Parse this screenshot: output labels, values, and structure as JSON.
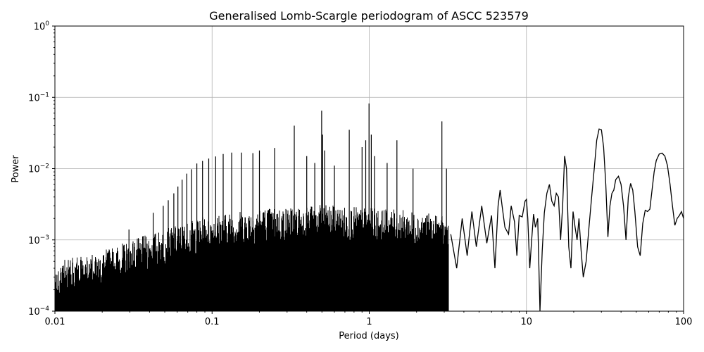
{
  "chart_data": {
    "type": "line",
    "title": "Generalised Lomb-Scargle periodogram of ASCC 523579",
    "xlabel": "Period (days)",
    "ylabel": "Power",
    "xscale": "log",
    "yscale": "log",
    "xlim": [
      0.01,
      100
    ],
    "ylim": [
      0.0001,
      1
    ],
    "grid": true,
    "legend": null,
    "x_ticks": [
      "0.01",
      "0.1",
      "1",
      "10",
      "100"
    ],
    "y_ticks": [
      {
        "base": "10",
        "exp": "−4",
        "value": 0.0001
      },
      {
        "base": "10",
        "exp": "−3",
        "value": 0.001
      },
      {
        "base": "10",
        "exp": "−2",
        "value": 0.01
      },
      {
        "base": "10",
        "exp": "−1",
        "value": 0.1
      },
      {
        "base": "10",
        "exp": "0",
        "value": 1
      }
    ],
    "series_color": "#000000",
    "noise_floor_envelope": {
      "description": "dense aliasing forest below ~3 d; approximate upper envelope of the noise",
      "periods": [
        0.01,
        0.02,
        0.03,
        0.05,
        0.08,
        0.1,
        0.2,
        0.5,
        1.0,
        2.0,
        3.0
      ],
      "power": [
        0.00035,
        0.0005,
        0.0007,
        0.001,
        0.0014,
        0.0016,
        0.002,
        0.0022,
        0.002,
        0.0018,
        0.0015
      ]
    },
    "alias_peaks": [
      {
        "period": 0.0296,
        "power": 0.0014
      },
      {
        "period": 0.0422,
        "power": 0.0024
      },
      {
        "period": 0.0489,
        "power": 0.003
      },
      {
        "period": 0.0526,
        "power": 0.0036
      },
      {
        "period": 0.0571,
        "power": 0.0045
      },
      {
        "period": 0.0606,
        "power": 0.0056
      },
      {
        "period": 0.0645,
        "power": 0.007
      },
      {
        "period": 0.069,
        "power": 0.0085
      },
      {
        "period": 0.074,
        "power": 0.0098
      },
      {
        "period": 0.08,
        "power": 0.0118
      },
      {
        "period": 0.087,
        "power": 0.0128
      },
      {
        "period": 0.0952,
        "power": 0.0138
      },
      {
        "period": 0.1053,
        "power": 0.0148
      },
      {
        "period": 0.1176,
        "power": 0.016
      },
      {
        "period": 0.1333,
        "power": 0.0168
      },
      {
        "period": 0.1538,
        "power": 0.0168
      },
      {
        "period": 0.1818,
        "power": 0.0165
      },
      {
        "period": 0.2,
        "power": 0.018
      },
      {
        "period": 0.25,
        "power": 0.0195
      },
      {
        "period": 0.3333,
        "power": 0.04
      },
      {
        "period": 0.4,
        "power": 0.015
      },
      {
        "period": 0.45,
        "power": 0.012
      },
      {
        "period": 0.498,
        "power": 0.065
      },
      {
        "period": 0.504,
        "power": 0.03
      },
      {
        "period": 0.52,
        "power": 0.018
      },
      {
        "period": 0.6,
        "power": 0.011
      },
      {
        "period": 0.746,
        "power": 0.035
      },
      {
        "period": 0.9,
        "power": 0.02
      },
      {
        "period": 0.95,
        "power": 0.025
      },
      {
        "period": 0.9973,
        "power": 0.082
      },
      {
        "period": 1.03,
        "power": 0.03
      },
      {
        "period": 1.08,
        "power": 0.015
      },
      {
        "period": 1.3,
        "power": 0.012
      },
      {
        "period": 1.5,
        "power": 0.025
      },
      {
        "period": 1.9,
        "power": 0.01
      },
      {
        "period": 2.9,
        "power": 0.046
      },
      {
        "period": 3.1,
        "power": 0.01
      }
    ],
    "long_period_curve": {
      "periods": [
        3.3,
        3.6,
        3.9,
        4.2,
        4.5,
        4.8,
        5.2,
        5.6,
        6.0,
        6.3,
        6.6,
        6.8,
        7.0,
        7.3,
        7.7,
        8.0,
        8.4,
        8.7,
        9.0,
        9.4,
        9.8,
        10.0,
        10.2,
        10.5,
        10.8,
        11.1,
        11.4,
        11.8,
        12.2,
        12.6,
        13.0,
        13.5,
        14.0,
        14.5,
        15.0,
        15.5,
        16.0,
        16.5,
        17.0,
        17.5,
        18.0,
        18.6,
        19.2,
        19.8,
        20.4,
        21.0,
        21.6,
        22.3,
        23.0,
        24.0,
        25.0,
        26.0,
        27.0,
        28.0,
        29.0,
        30.0,
        31.0,
        32.0,
        33.0,
        34.0,
        35.0,
        36.0,
        37.0,
        38.5,
        40.0,
        41.5,
        43.0,
        44.5,
        46.0,
        47.5,
        49.0,
        51.0,
        53.0,
        55.0,
        57.0,
        59.0,
        61.0,
        63.0,
        65.0,
        67.0,
        70.0,
        73.0,
        76.0,
        79.0,
        82.0,
        85.0,
        88.0,
        91.0,
        94.0,
        97.0,
        100.0
      ],
      "power": [
        0.0012,
        0.0004,
        0.002,
        0.0006,
        0.0025,
        0.0008,
        0.003,
        0.0009,
        0.0022,
        0.0004,
        0.003,
        0.005,
        0.003,
        0.0015,
        0.0012,
        0.003,
        0.0018,
        0.0006,
        0.0022,
        0.0021,
        0.0035,
        0.0037,
        0.002,
        0.0004,
        0.001,
        0.0023,
        0.0015,
        0.002,
        0.0001,
        0.0007,
        0.0024,
        0.0045,
        0.006,
        0.0035,
        0.003,
        0.0045,
        0.004,
        0.001,
        0.003,
        0.015,
        0.01,
        0.0008,
        0.0004,
        0.0025,
        0.0015,
        0.001,
        0.002,
        0.0007,
        0.0003,
        0.0005,
        0.0015,
        0.004,
        0.01,
        0.025,
        0.036,
        0.035,
        0.02,
        0.006,
        0.0011,
        0.003,
        0.0045,
        0.005,
        0.007,
        0.0078,
        0.006,
        0.003,
        0.001,
        0.004,
        0.0062,
        0.005,
        0.0025,
        0.0008,
        0.0006,
        0.0017,
        0.0026,
        0.0025,
        0.0027,
        0.005,
        0.009,
        0.013,
        0.016,
        0.0165,
        0.015,
        0.011,
        0.006,
        0.003,
        0.0016,
        0.002,
        0.0022,
        0.0025,
        0.002
      ]
    }
  }
}
